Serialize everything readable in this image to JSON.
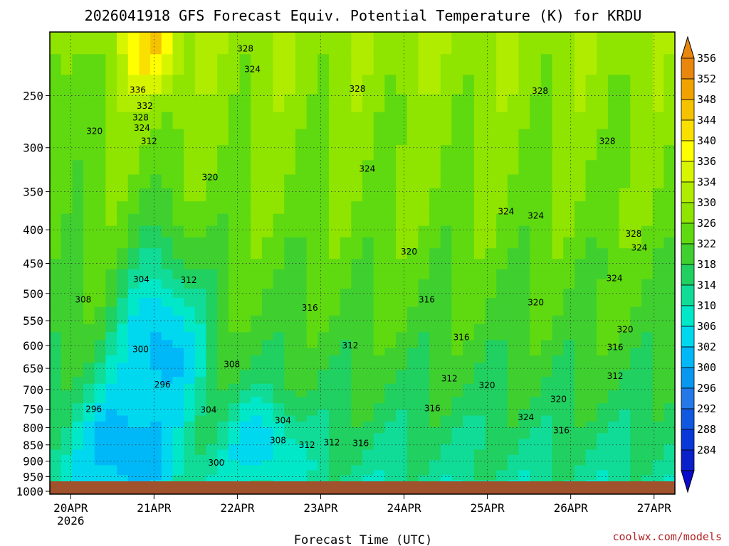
{
  "chart_data": {
    "type": "heatmap",
    "title": "2026041918 GFS Forecast Equiv. Potential Temperature (K) for KRDU",
    "xlabel": "Forecast Time (UTC)",
    "ylabel": "",
    "x_ticks": [
      {
        "label": "20APR",
        "sublabel": "2026",
        "day": 0
      },
      {
        "label": "21APR",
        "day": 1
      },
      {
        "label": "22APR",
        "day": 2
      },
      {
        "label": "23APR",
        "day": 3
      },
      {
        "label": "24APR",
        "day": 4
      },
      {
        "label": "25APR",
        "day": 5
      },
      {
        "label": "26APR",
        "day": 6
      },
      {
        "label": "27APR",
        "day": 7
      }
    ],
    "xlim": [
      -0.25,
      7.25
    ],
    "y_ticks": [
      "250",
      "300",
      "350",
      "400",
      "450",
      "500",
      "550",
      "600",
      "650",
      "700",
      "750",
      "800",
      "850",
      "900",
      "950",
      "1000"
    ],
    "y_tick_values": [
      250,
      300,
      350,
      400,
      450,
      500,
      550,
      600,
      650,
      700,
      750,
      800,
      850,
      900,
      950,
      1000
    ],
    "ylim": [
      200,
      1010
    ],
    "colorbar": {
      "labels": [
        "356",
        "352",
        "348",
        "344",
        "340",
        "336",
        "334",
        "330",
        "326",
        "322",
        "318",
        "314",
        "310",
        "306",
        "302",
        "300",
        "296",
        "292",
        "288",
        "284"
      ],
      "colors": [
        "#e8860e",
        "#f0a300",
        "#f5c200",
        "#fae000",
        "#ffff00",
        "#d8f500",
        "#b0ec00",
        "#8fe400",
        "#5fda10",
        "#3fd030",
        "#20d060",
        "#10dc98",
        "#00e8c8",
        "#00d8f0",
        "#00b8f8",
        "#0898f0",
        "#2478e8",
        "#1058e0",
        "#0838d8",
        "#0a20c8"
      ],
      "under_color": "#0a0acc",
      "over_color": "#e8860e"
    },
    "contour_labels": [
      {
        "text": "328",
        "day": 2.51,
        "p": 212
      },
      {
        "text": "324",
        "day": 2.61,
        "p": 228
      },
      {
        "text": "336",
        "day": 0.99,
        "p": 245
      },
      {
        "text": "332",
        "day": 1.09,
        "p": 259
      },
      {
        "text": "328",
        "day": 1.03,
        "p": 270
      },
      {
        "text": "324",
        "day": 1.05,
        "p": 280
      },
      {
        "text": "320",
        "day": 0.38,
        "p": 283
      },
      {
        "text": "312",
        "day": 1.15,
        "p": 293
      },
      {
        "text": "328",
        "day": 4.09,
        "p": 244
      },
      {
        "text": "328",
        "day": 6.67,
        "p": 246
      },
      {
        "text": "328",
        "day": 7.62,
        "p": 293
      },
      {
        "text": "320",
        "day": 2.01,
        "p": 333
      },
      {
        "text": "324",
        "day": 4.23,
        "p": 323
      },
      {
        "text": "324",
        "day": 6.19,
        "p": 375
      },
      {
        "text": "324",
        "day": 6.61,
        "p": 381
      },
      {
        "text": "328",
        "day": 7.99,
        "p": 406
      },
      {
        "text": "324",
        "day": 8.07,
        "p": 426
      },
      {
        "text": "320",
        "day": 4.82,
        "p": 432
      },
      {
        "text": "304",
        "day": 1.04,
        "p": 476
      },
      {
        "text": "312",
        "day": 1.71,
        "p": 477
      },
      {
        "text": "324",
        "day": 7.72,
        "p": 474
      },
      {
        "text": "308",
        "day": 0.22,
        "p": 511
      },
      {
        "text": "316",
        "day": 3.42,
        "p": 526
      },
      {
        "text": "316",
        "day": 5.07,
        "p": 511
      },
      {
        "text": "320",
        "day": 6.61,
        "p": 516
      },
      {
        "text": "320",
        "day": 7.87,
        "p": 567
      },
      {
        "text": "316",
        "day": 5.56,
        "p": 583
      },
      {
        "text": "312",
        "day": 3.99,
        "p": 600
      },
      {
        "text": "316",
        "day": 7.73,
        "p": 604
      },
      {
        "text": "300",
        "day": 1.03,
        "p": 608
      },
      {
        "text": "308",
        "day": 2.32,
        "p": 641
      },
      {
        "text": "312",
        "day": 5.39,
        "p": 674
      },
      {
        "text": "312",
        "day": 7.73,
        "p": 668
      },
      {
        "text": "296",
        "day": 1.34,
        "p": 688
      },
      {
        "text": "320",
        "day": 5.92,
        "p": 690
      },
      {
        "text": "320",
        "day": 6.93,
        "p": 724
      },
      {
        "text": "296",
        "day": 0.37,
        "p": 750
      },
      {
        "text": "304",
        "day": 1.99,
        "p": 752
      },
      {
        "text": "316",
        "day": 5.15,
        "p": 748
      },
      {
        "text": "324",
        "day": 6.47,
        "p": 772
      },
      {
        "text": "304",
        "day": 3.04,
        "p": 780
      },
      {
        "text": "316",
        "day": 6.97,
        "p": 808
      },
      {
        "text": "308",
        "day": 2.97,
        "p": 837
      },
      {
        "text": "312",
        "day": 3.38,
        "p": 850
      },
      {
        "text": "312",
        "day": 3.73,
        "p": 843
      },
      {
        "text": "316",
        "day": 4.14,
        "p": 845
      },
      {
        "text": "300",
        "day": 2.1,
        "p": 905
      }
    ]
  },
  "credit": "coolwx.com/models"
}
